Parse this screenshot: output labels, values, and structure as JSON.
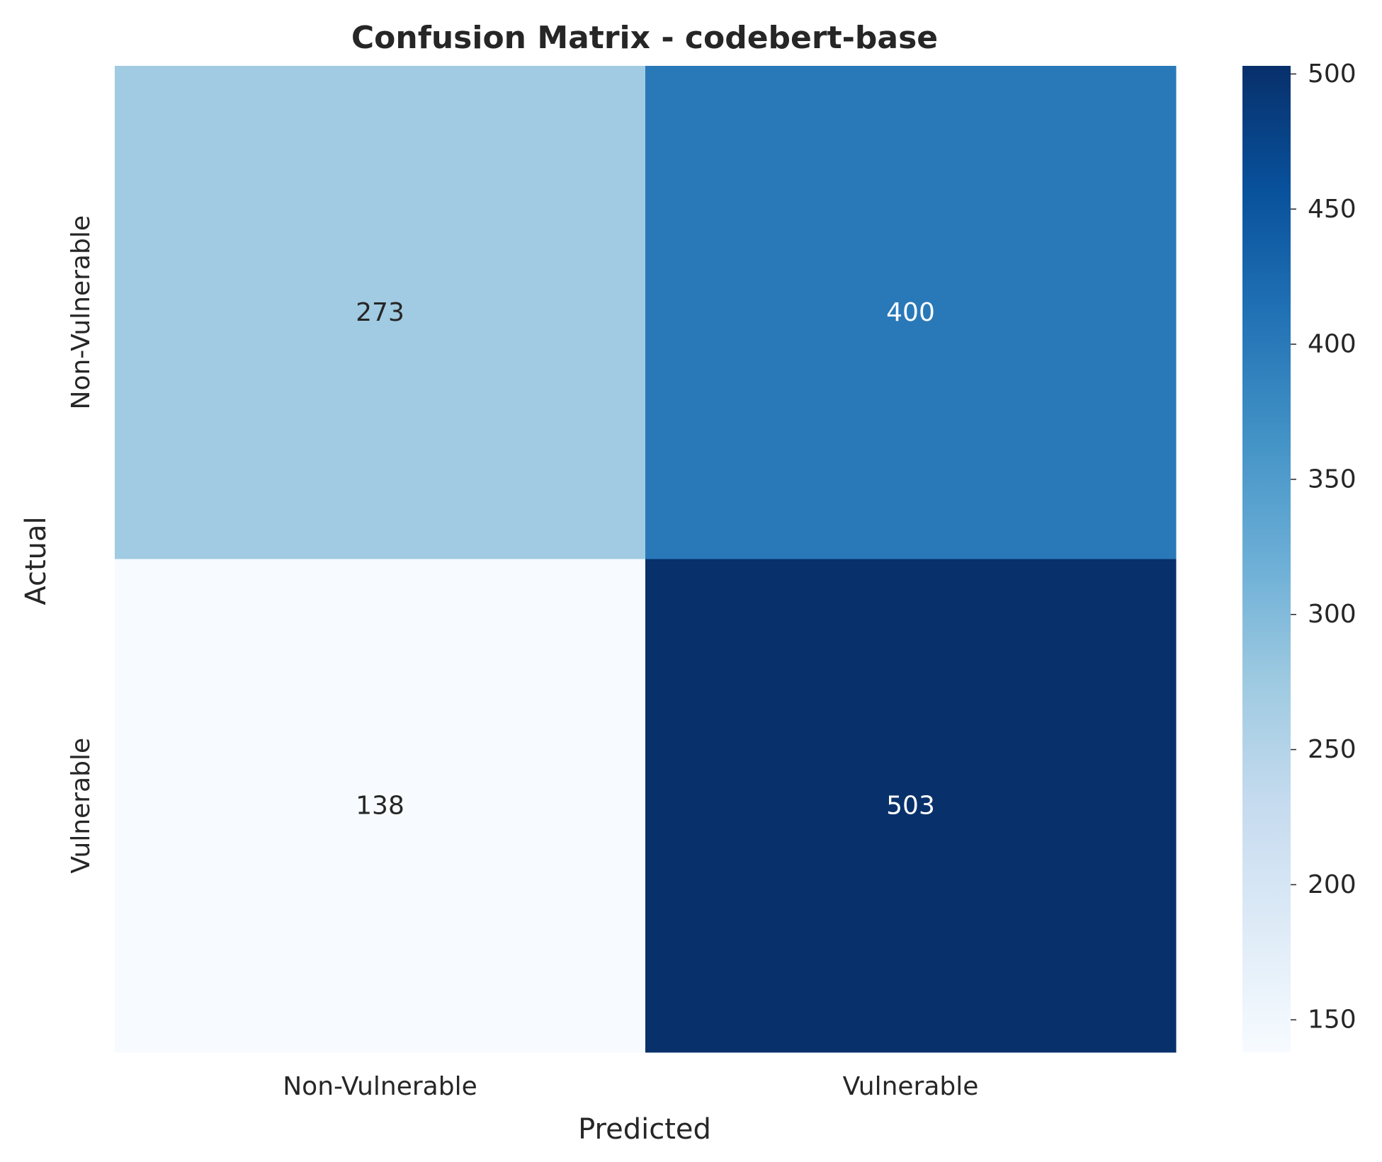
{
  "chart_data": {
    "type": "heatmap",
    "title": "Confusion Matrix - codebert-base",
    "xlabel": "Predicted",
    "ylabel": "Actual",
    "x_categories": [
      "Non-Vulnerable",
      "Vulnerable"
    ],
    "y_categories": [
      "Non-Vulnerable",
      "Vulnerable"
    ],
    "values": [
      [
        273,
        400
      ],
      [
        138,
        503
      ]
    ],
    "colormap": "Blues",
    "colorbar": {
      "range": [
        138,
        503
      ],
      "ticks": [
        150,
        200,
        250,
        300,
        350,
        400,
        450,
        500
      ]
    },
    "grid": false,
    "colors": {
      "text_dark": "#262626",
      "text_light": "#ffffff"
    }
  }
}
